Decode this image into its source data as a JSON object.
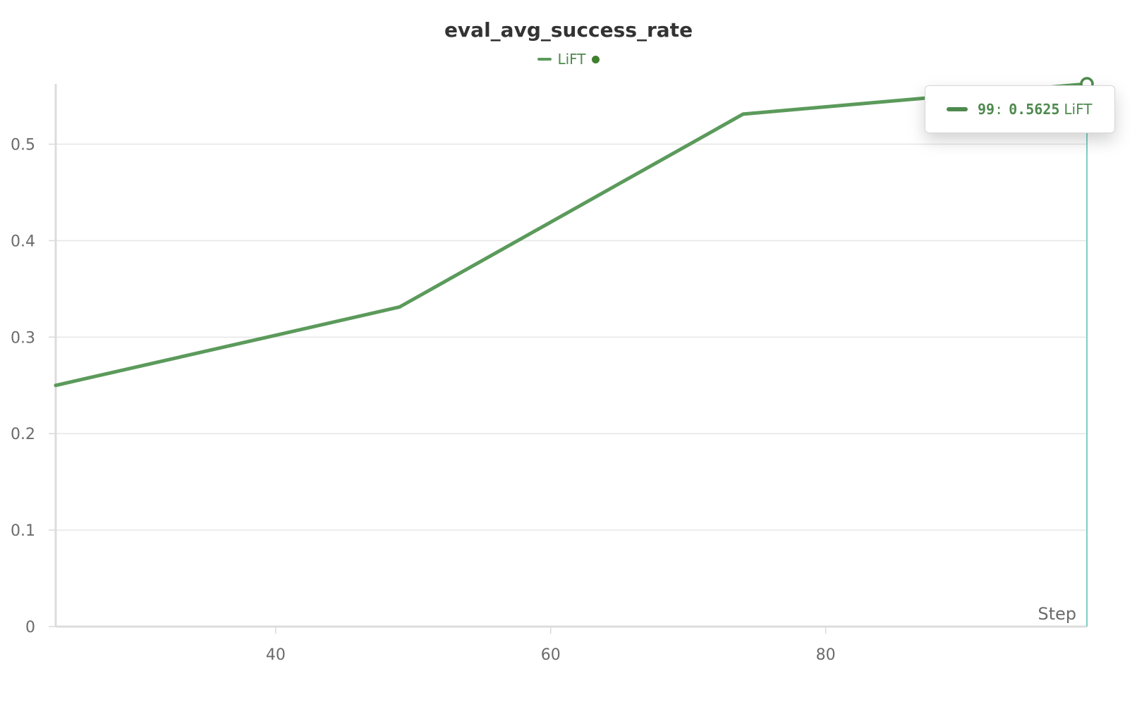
{
  "chart_data": {
    "type": "line",
    "title": "eval_avg_success_rate",
    "xlabel": "Step",
    "ylabel": "",
    "xlim": [
      24,
      99
    ],
    "ylim": [
      0,
      0.5625
    ],
    "x_ticks": [
      40,
      60,
      80
    ],
    "y_ticks": [
      0,
      0.1,
      0.2,
      0.3,
      0.4,
      0.5
    ],
    "x_tick_labels": [
      "40",
      "60",
      "80"
    ],
    "y_tick_labels": [
      "0",
      "0.1",
      "0.2",
      "0.3",
      "0.4",
      "0.5"
    ],
    "grid": true,
    "legend_position": "top-center",
    "series": [
      {
        "name": "LiFT",
        "color": "#5b9a5b",
        "x": [
          24,
          49,
          74,
          99
        ],
        "y": [
          0.25,
          0.3312,
          0.5312,
          0.5625
        ]
      }
    ],
    "hover": {
      "step": "99",
      "separator": ":",
      "value": "0.5625",
      "series": "LiFT",
      "cursor_color": "#7fcfc3"
    }
  }
}
